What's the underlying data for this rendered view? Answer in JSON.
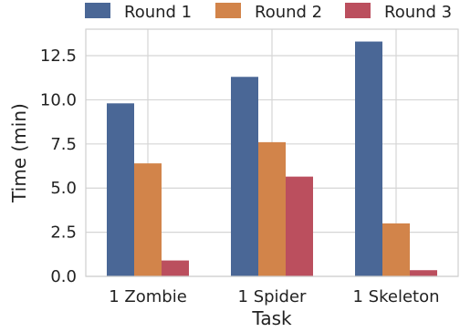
{
  "chart_data": {
    "type": "bar",
    "title": "",
    "xlabel": "Task",
    "ylabel": "Time (min)",
    "categories": [
      "1 Zombie",
      "1 Spider",
      "1 Skeleton"
    ],
    "series": [
      {
        "name": "Round 1",
        "color": "#4a6796",
        "values": [
          9.8,
          11.3,
          13.3
        ]
      },
      {
        "name": "Round 2",
        "color": "#d2844a",
        "values": [
          6.4,
          7.6,
          3.0
        ]
      },
      {
        "name": "Round 3",
        "color": "#bb4f5e",
        "values": [
          0.9,
          5.65,
          0.35
        ]
      }
    ],
    "ylim": [
      0,
      14
    ],
    "yticks": [
      0.0,
      2.5,
      5.0,
      7.5,
      10.0,
      12.5
    ],
    "ytick_labels": [
      "0.0",
      "2.5",
      "5.0",
      "7.5",
      "10.0",
      "12.5"
    ],
    "grid": true,
    "legend": "top"
  }
}
